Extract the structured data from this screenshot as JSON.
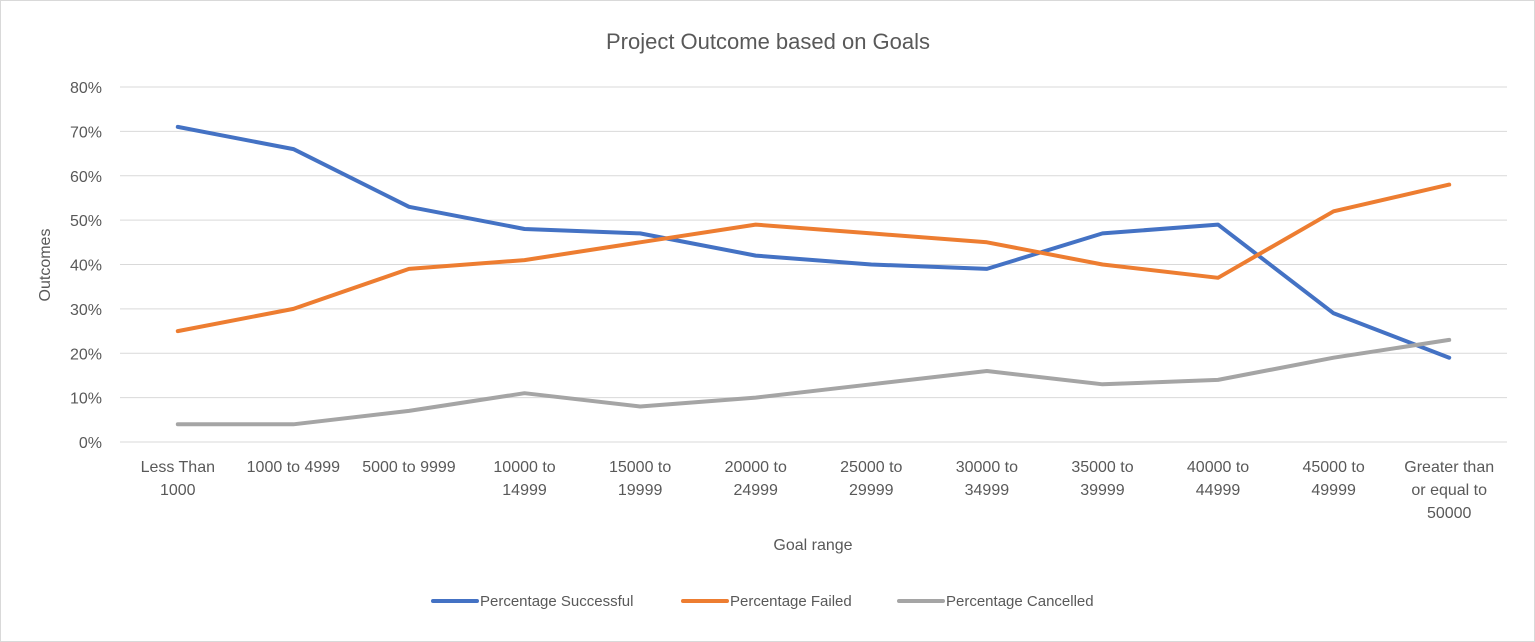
{
  "chart_data": {
    "type": "line",
    "title": "Project Outcome based on Goals",
    "xlabel": "Goal range",
    "ylabel": "Outcomes",
    "ylim": [
      0,
      0.8
    ],
    "y_ticks": [
      "0%",
      "10%",
      "20%",
      "30%",
      "40%",
      "50%",
      "60%",
      "70%",
      "80%"
    ],
    "grid": "horizontal",
    "legend_position": "bottom",
    "categories": [
      "Less Than 1000",
      "1000 to 4999",
      "5000 to 9999",
      "10000 to 14999",
      "15000 to 19999",
      "20000 to 24999",
      "25000 to 29999",
      "30000 to 34999",
      "35000 to 39999",
      "40000 to 44999",
      "45000 to 49999",
      "Greater than or equal to 50000"
    ],
    "category_label_lines": [
      [
        "Less Than",
        "1000"
      ],
      [
        "1000 to 4999"
      ],
      [
        "5000 to 9999"
      ],
      [
        "10000 to",
        "14999"
      ],
      [
        "15000 to",
        "19999"
      ],
      [
        "20000 to",
        "24999"
      ],
      [
        "25000 to",
        "29999"
      ],
      [
        "30000 to",
        "34999"
      ],
      [
        "35000 to",
        "39999"
      ],
      [
        "40000 to",
        "44999"
      ],
      [
        "45000 to",
        "49999"
      ],
      [
        "Greater than",
        "or equal to",
        "50000"
      ]
    ],
    "series": [
      {
        "name": "Percentage Successful",
        "color": "#4472c4",
        "values": [
          0.71,
          0.66,
          0.53,
          0.48,
          0.47,
          0.42,
          0.4,
          0.39,
          0.47,
          0.49,
          0.29,
          0.19
        ]
      },
      {
        "name": "Percentage Failed",
        "color": "#ed7d31",
        "values": [
          0.25,
          0.3,
          0.39,
          0.41,
          0.45,
          0.49,
          0.47,
          0.45,
          0.4,
          0.37,
          0.52,
          0.58
        ]
      },
      {
        "name": "Percentage Cancelled",
        "color": "#a5a5a5",
        "values": [
          0.04,
          0.04,
          0.07,
          0.11,
          0.08,
          0.1,
          0.13,
          0.16,
          0.13,
          0.14,
          0.19,
          0.23
        ]
      }
    ],
    "gridline_color": "#d9d9d9"
  }
}
